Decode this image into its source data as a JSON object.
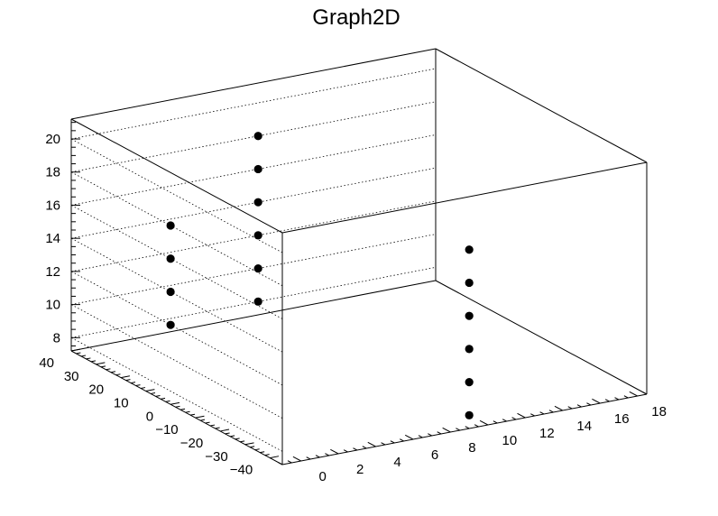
{
  "chart_data": {
    "type": "scatter",
    "title": "Graph2D",
    "xlim": [
      -1,
      18.5
    ],
    "ylim": [
      -45,
      40
    ],
    "zlim": [
      7.2,
      21.2
    ],
    "x_ticks": [
      0,
      2,
      4,
      6,
      8,
      10,
      12,
      14,
      16,
      18
    ],
    "y_ticks": [
      40,
      30,
      20,
      10,
      0,
      -10,
      -20,
      -30,
      -40
    ],
    "z_ticks": [
      8,
      10,
      12,
      14,
      16,
      18,
      20
    ],
    "x_tick_labels": [
      "0",
      "2",
      "4",
      "6",
      "8",
      "10",
      "12",
      "14",
      "16",
      "18"
    ],
    "y_tick_labels": [
      "40",
      "30",
      "20",
      "10",
      "0",
      "−10",
      "−20",
      "−30",
      "−40"
    ],
    "z_tick_labels": [
      "8",
      "10",
      "12",
      "14",
      "16",
      "18",
      "20"
    ],
    "grid": true,
    "marker_color": "#000000",
    "points": [
      {
        "x": 9,
        "y": -45,
        "z": 8
      },
      {
        "x": 9,
        "y": -45,
        "z": 10
      },
      {
        "x": 9,
        "y": -45,
        "z": 12
      },
      {
        "x": 9,
        "y": -45,
        "z": 14
      },
      {
        "x": 9,
        "y": -45,
        "z": 16
      },
      {
        "x": 9,
        "y": -45,
        "z": 18
      },
      {
        "x": 9,
        "y": 40,
        "z": 8
      },
      {
        "x": 9,
        "y": 40,
        "z": 10
      },
      {
        "x": 9,
        "y": 40,
        "z": 12
      },
      {
        "x": 9,
        "y": 40,
        "z": 14
      },
      {
        "x": 9,
        "y": 40,
        "z": 16
      },
      {
        "x": 9,
        "y": 40,
        "z": 18
      },
      {
        "x": -1,
        "y": 0,
        "z": 12
      },
      {
        "x": -1,
        "y": 0,
        "z": 14
      },
      {
        "x": -1,
        "y": 0,
        "z": 16
      },
      {
        "x": -1,
        "y": 0,
        "z": 18
      }
    ]
  }
}
